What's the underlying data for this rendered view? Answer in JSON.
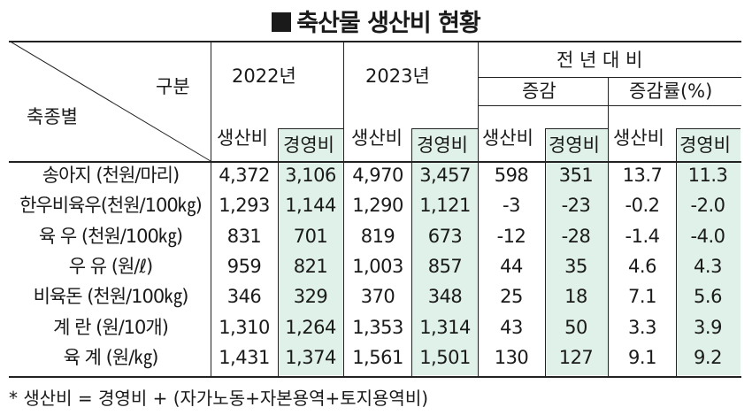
{
  "title": "축산물 생산비 현황",
  "header": {
    "group_label": "구분",
    "row_label": "축종별",
    "year1": "2022년",
    "year2": "2023년",
    "yoy": "전 년 대 비",
    "change": "증감",
    "change_rate": "증감률(%)",
    "prod_cost": "생산비",
    "mgmt_cost": "경영비"
  },
  "rows": [
    {
      "label": "송아지 (천원/마리)",
      "v": [
        "4,372",
        "3,106",
        "4,970",
        "3,457",
        "598",
        "351",
        "13.7",
        "11.3"
      ]
    },
    {
      "label": "한우비육우(천원/100㎏)",
      "v": [
        "1,293",
        "1,144",
        "1,290",
        "1,121",
        "-3",
        "-23",
        "-0.2",
        "-2.0"
      ]
    },
    {
      "label": "육  우 (천원/100㎏)",
      "v": [
        "831",
        "701",
        "819",
        "673",
        "-12",
        "-28",
        "-1.4",
        "-4.0"
      ]
    },
    {
      "label": "우  유 (원/ℓ)",
      "v": [
        "959",
        "821",
        "1,003",
        "857",
        "44",
        "35",
        "4.6",
        "4.3"
      ]
    },
    {
      "label": "비육돈 (천원/100㎏)",
      "v": [
        "346",
        "329",
        "370",
        "348",
        "25",
        "18",
        "7.1",
        "5.6"
      ]
    },
    {
      "label": "계  란 (원/10개)",
      "v": [
        "1,310",
        "1,264",
        "1,353",
        "1,314",
        "43",
        "50",
        "3.3",
        "3.9"
      ]
    },
    {
      "label": "육  계 (원/㎏)",
      "v": [
        "1,431",
        "1,374",
        "1,561",
        "1,501",
        "130",
        "127",
        "9.1",
        "9.2"
      ]
    }
  ],
  "footnote": "* 생산비 = 경영비 + (자가노동+자본용역+토지용역비)",
  "colors": {
    "shade": "#dff1e9",
    "line": "#222222"
  }
}
